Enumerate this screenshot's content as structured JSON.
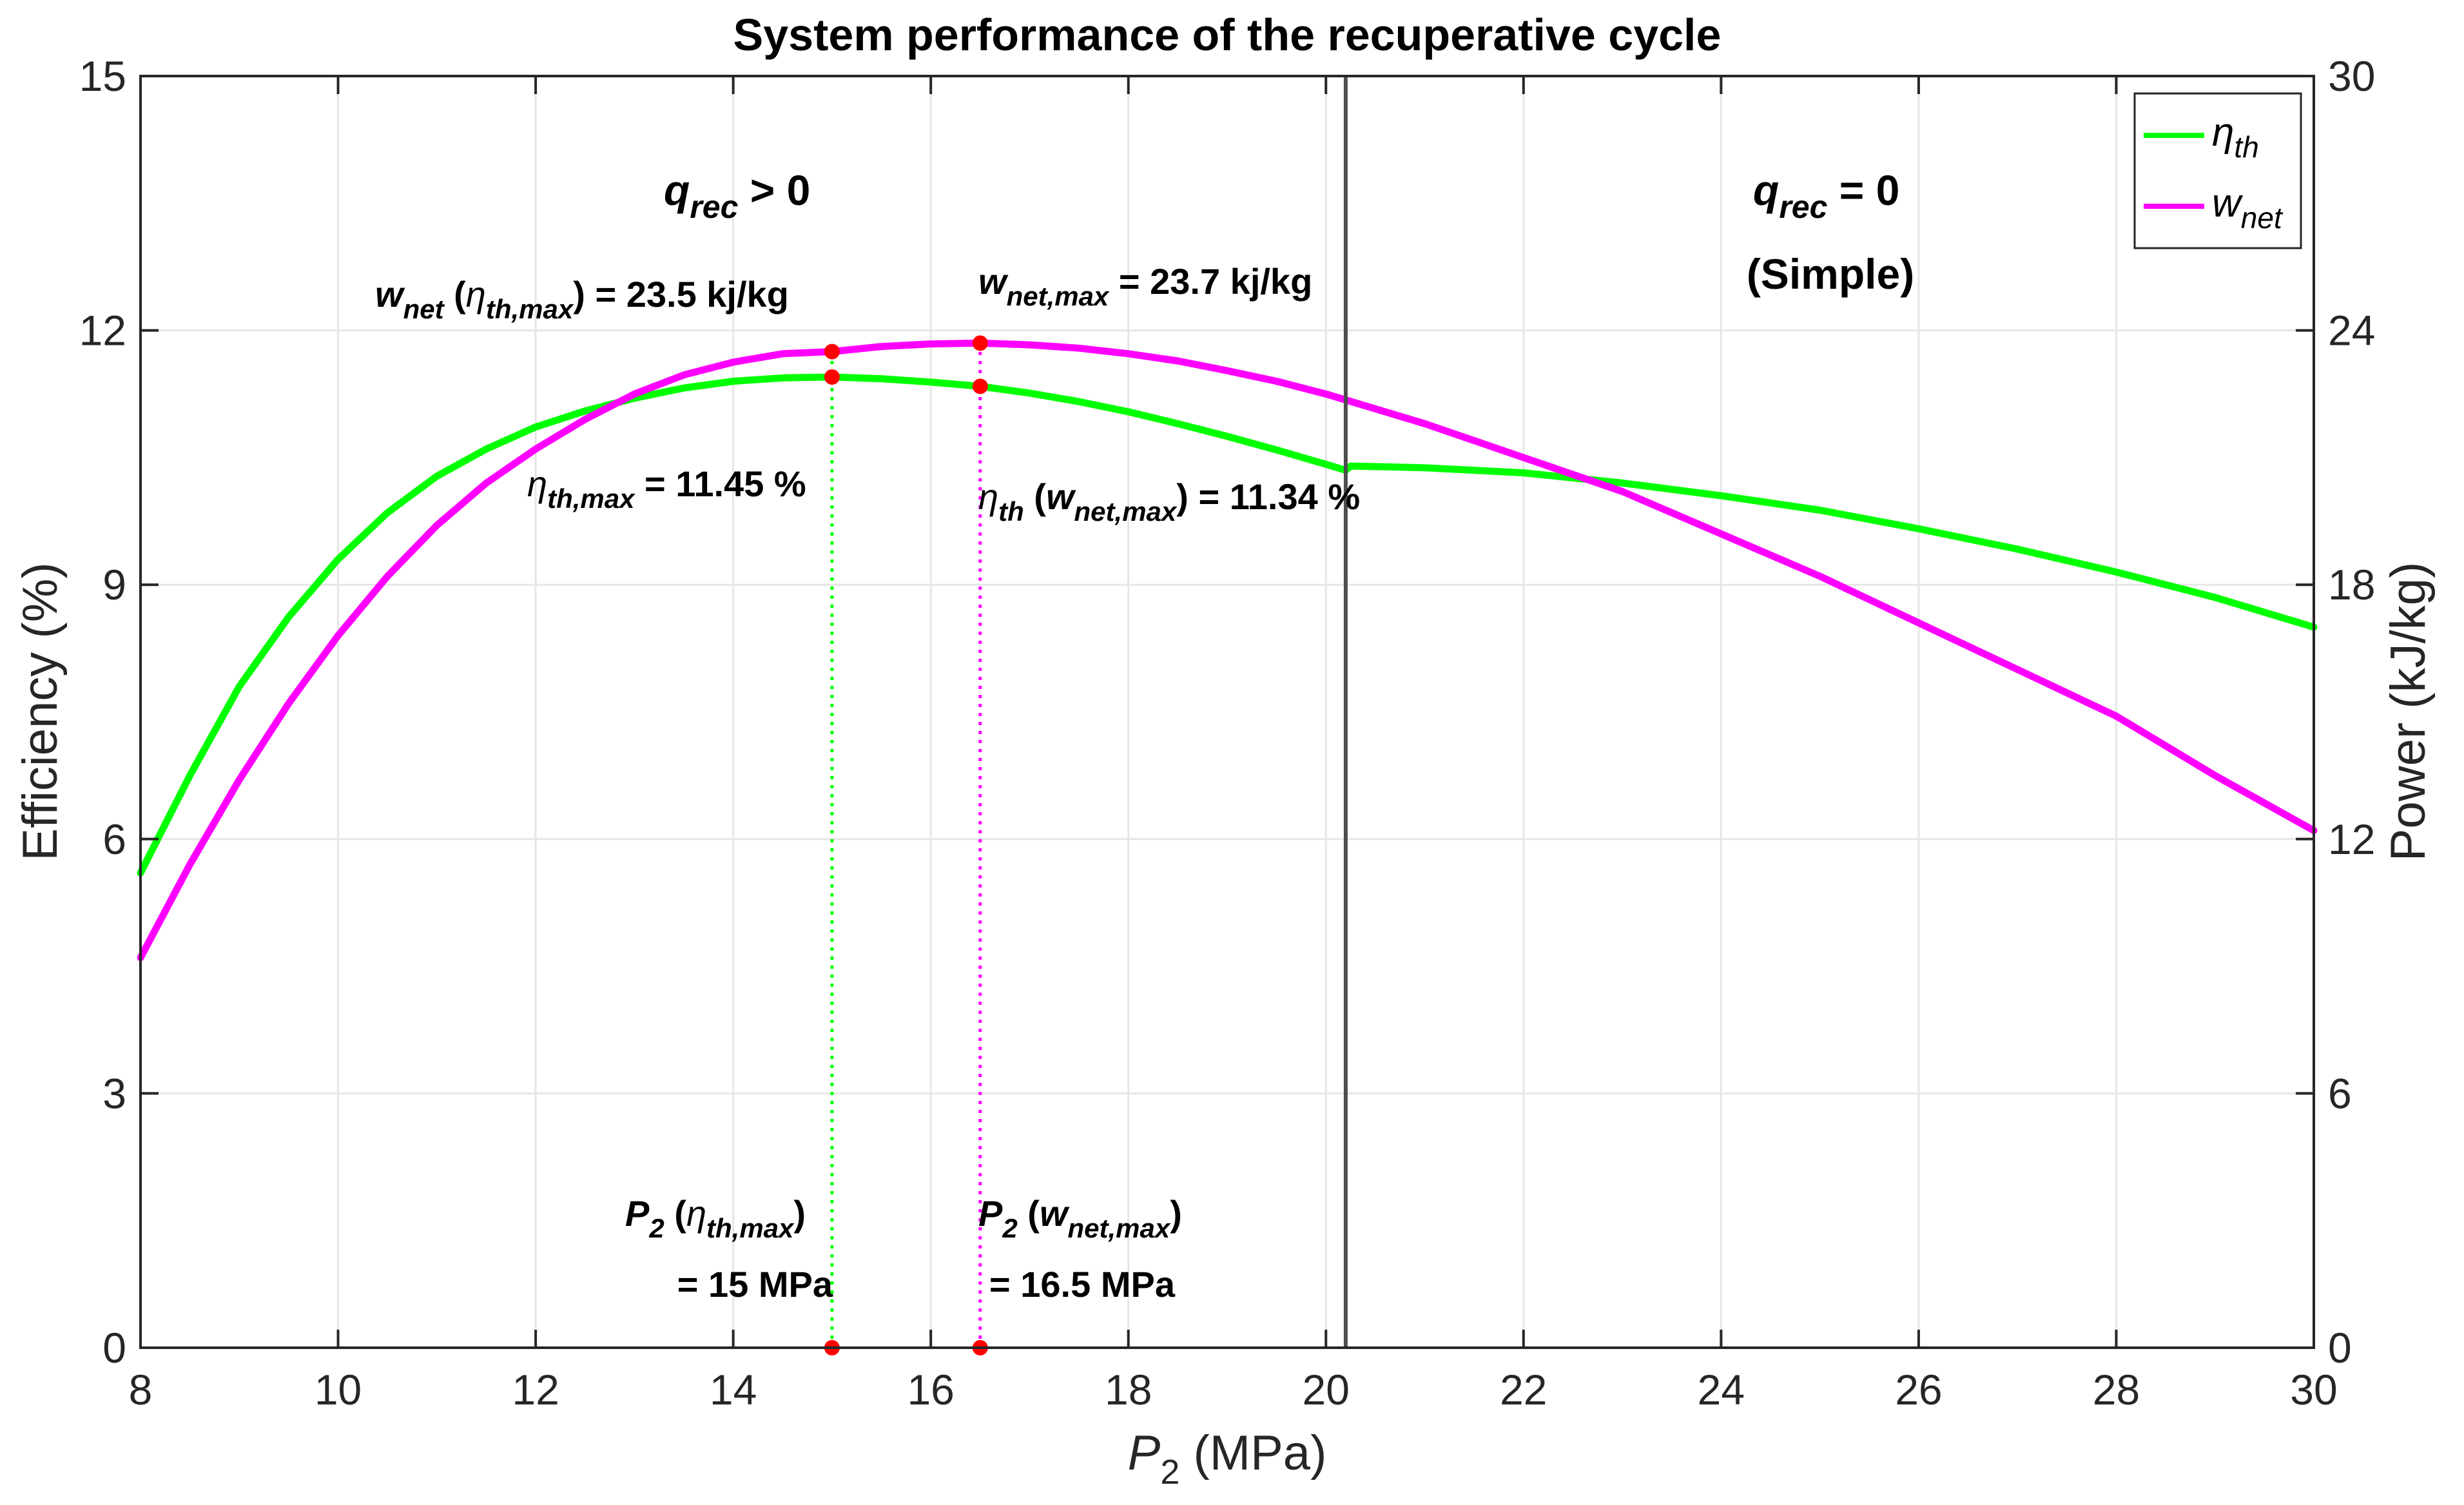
{
  "chart_data": {
    "type": "line",
    "title": "System performance of the recuperative cycle",
    "xlabel": {
      "main": "P",
      "sub": "2",
      "rest": " (MPa)"
    },
    "ylabel_left": "Efficiency (%)",
    "ylabel_right": "Power (kJ/kg)",
    "xlim": [
      8,
      30
    ],
    "ylim_left": [
      0,
      15
    ],
    "ylim_right": [
      0,
      30
    ],
    "xticks": [
      8,
      10,
      12,
      14,
      16,
      18,
      20,
      22,
      24,
      26,
      28,
      30
    ],
    "yticks_left": [
      0,
      3,
      6,
      9,
      12,
      15
    ],
    "yticks_right": [
      0,
      6,
      12,
      18,
      24,
      30
    ],
    "grid": true,
    "legend_position": "top-right",
    "colors": {
      "eta": "#00ff00",
      "w": "#ff00ff",
      "marker": "#ff0000",
      "divider": "#4d4d4d",
      "grid": "#e6e6e6"
    },
    "series": [
      {
        "name": "eta_th",
        "legend": {
          "symbol": "η",
          "sub": "th"
        },
        "axis": "left",
        "x": [
          8,
          8.5,
          9,
          9.5,
          10,
          10.5,
          11,
          11.5,
          12,
          12.5,
          13,
          13.5,
          14,
          14.5,
          15,
          15.5,
          16,
          16.5,
          17,
          17.5,
          18,
          18.5,
          19,
          19.5,
          20,
          20.2,
          20.25,
          21,
          22,
          23,
          24,
          25,
          26,
          27,
          28,
          29,
          30
        ],
        "values": [
          5.6,
          6.75,
          7.8,
          8.62,
          9.3,
          9.85,
          10.28,
          10.6,
          10.86,
          11.05,
          11.2,
          11.32,
          11.4,
          11.44,
          11.45,
          11.43,
          11.39,
          11.34,
          11.26,
          11.16,
          11.04,
          10.9,
          10.75,
          10.59,
          10.42,
          10.35,
          10.4,
          10.38,
          10.32,
          10.2,
          10.05,
          9.88,
          9.66,
          9.42,
          9.15,
          8.85,
          8.5
        ]
      },
      {
        "name": "w_net",
        "legend": {
          "symbol": "w",
          "sub": "net"
        },
        "axis": "right",
        "x": [
          8,
          8.5,
          9,
          9.5,
          10,
          10.5,
          11,
          11.5,
          12,
          12.5,
          13,
          13.5,
          14,
          14.5,
          15,
          15.5,
          16,
          16.5,
          17,
          17.5,
          18,
          18.5,
          19,
          19.5,
          20,
          21,
          22,
          23,
          24,
          25,
          26,
          27,
          28,
          29,
          30
        ],
        "values": [
          9.2,
          11.4,
          13.4,
          15.2,
          16.8,
          18.2,
          19.4,
          20.4,
          21.2,
          21.9,
          22.5,
          22.95,
          23.25,
          23.45,
          23.5,
          23.62,
          23.68,
          23.7,
          23.66,
          23.58,
          23.45,
          23.28,
          23.05,
          22.8,
          22.5,
          21.8,
          21.0,
          20.2,
          19.2,
          18.2,
          17.1,
          16.0,
          14.9,
          13.5,
          12.2
        ]
      }
    ],
    "markers": [
      {
        "x": 15,
        "y_left": 11.45
      },
      {
        "x": 15,
        "y_right": 23.5
      },
      {
        "x": 15,
        "y_left": 0
      },
      {
        "x": 16.5,
        "y_left": 11.34
      },
      {
        "x": 16.5,
        "y_right": 23.7
      },
      {
        "x": 16.5,
        "y_left": 0
      }
    ],
    "guide_lines": [
      {
        "x": 15,
        "from_left": 0,
        "to_right": 23.5,
        "color_key": "eta"
      },
      {
        "x": 16.5,
        "from_left": 0,
        "to_right": 23.7,
        "color_key": "w"
      }
    ],
    "divider_x": 20.2,
    "annotations": {
      "q_left": {
        "q": "q",
        "sub": "rec",
        "rest": " > 0"
      },
      "q_right": {
        "q": "q",
        "sub": "rec",
        "rest": " = 0"
      },
      "simple": "(Simple)",
      "w_at_eta_max": {
        "w": "w",
        "w_sub": "net",
        "open": " (",
        "eta": "η",
        "eta_sub": "th,max",
        "close": ") = 23.5 kj/kg"
      },
      "w_max": {
        "w": "w",
        "w_sub": "net,max",
        "rest": " = 23.7 kj/kg"
      },
      "eta_max": {
        "eta": "η",
        "eta_sub": "th,max",
        "rest": " = 11.45 %"
      },
      "eta_at_w_max": {
        "eta": "η",
        "eta_sub": "th",
        "open": " (",
        "w": "w",
        "w_sub": "net,max",
        "close": ") = 11.34 %"
      },
      "p2_eta_max": {
        "p": "P",
        "p_sub": "2",
        "open": " (",
        "eta": "η",
        "eta_sub": "th,max",
        "close": ")",
        "line2": "= 15 MPa"
      },
      "p2_w_max": {
        "p": "P",
        "p_sub": "2",
        "open": " (",
        "w": "w",
        "w_sub": "net,max",
        "close": ")",
        "line2": "= 16.5 MPa"
      }
    }
  }
}
